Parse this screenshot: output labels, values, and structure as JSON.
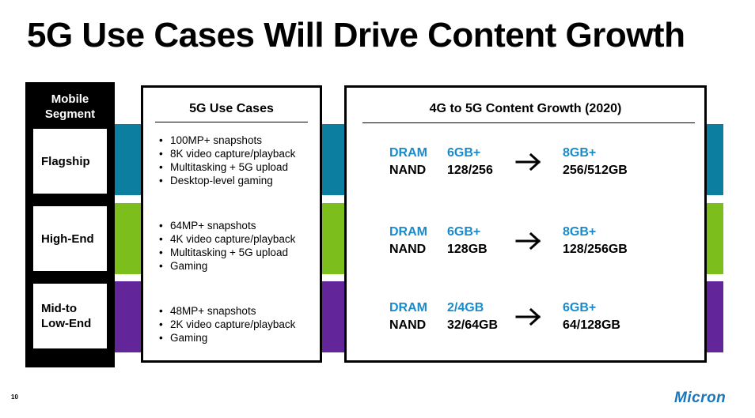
{
  "title": "5G Use Cases Will Drive Content Growth",
  "segment_header": "Mobile\nSegment",
  "segments": [
    {
      "label": "Flagship"
    },
    {
      "label": "High-End"
    },
    {
      "label": "Mid-to\nLow-End"
    }
  ],
  "use_cases": {
    "title": "5G Use Cases",
    "groups": [
      {
        "items": [
          "100MP+ snapshots",
          "8K video capture/playback",
          "Multitasking + 5G upload",
          "Desktop-level gaming"
        ]
      },
      {
        "items": [
          "64MP+ snapshots",
          "4K video capture/playback",
          "Multitasking + 5G upload",
          "Gaming"
        ]
      },
      {
        "items": [
          "48MP+ snapshots",
          "2K video capture/playback",
          "Gaming"
        ]
      }
    ]
  },
  "content_growth": {
    "title": "4G to 5G Content Growth (2020)",
    "rows": [
      {
        "dram_label": "DRAM",
        "nand_label": "NAND",
        "dram_4g": "6GB+",
        "nand_4g": "128/256",
        "dram_5g": "8GB+",
        "nand_5g": "256/512GB"
      },
      {
        "dram_label": "DRAM",
        "nand_label": "NAND",
        "dram_4g": "6GB+",
        "nand_4g": "128GB",
        "dram_5g": "8GB+",
        "nand_5g": "128/256GB"
      },
      {
        "dram_label": "DRAM",
        "nand_label": "NAND",
        "dram_4g": "2/4GB",
        "nand_4g": "32/64GB",
        "dram_5g": "6GB+",
        "nand_5g": "64/128GB"
      }
    ]
  },
  "page_number": "10",
  "logo_text": "Micron",
  "colors": {
    "flagship_band": "#0C7FA0",
    "high_end_band": "#7CBF1D",
    "mid_low_band": "#63259A",
    "dram_accent": "#1A8ACB",
    "logo": "#1B75BB"
  }
}
